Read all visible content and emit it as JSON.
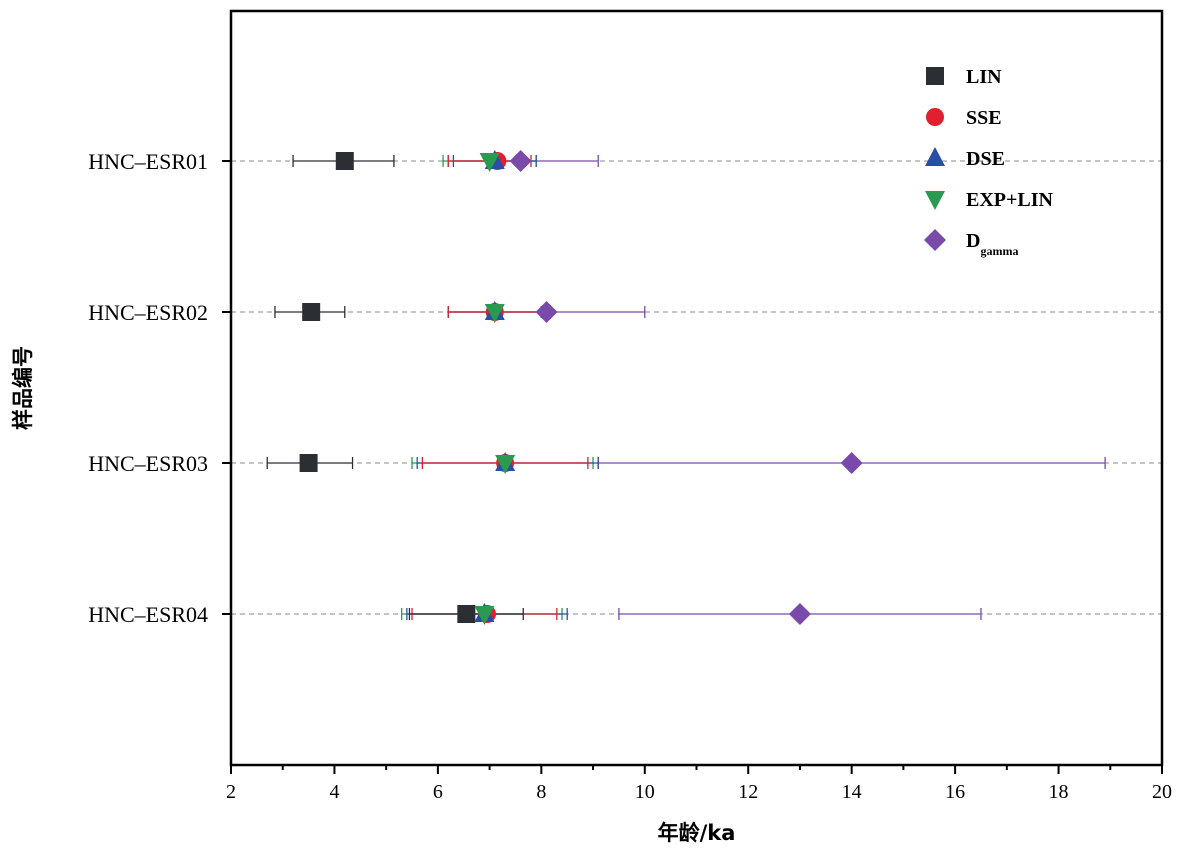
{
  "chart_data": {
    "type": "scatter",
    "xlabel": "年龄/ka",
    "ylabel": "样品编号",
    "xlim": [
      2,
      20
    ],
    "x_ticks": [
      "2",
      "4",
      "6",
      "8",
      "10",
      "12",
      "14",
      "16",
      "18",
      "20"
    ],
    "categories": [
      "HNC–ESR01",
      "HNC–ESR02",
      "HNC–ESR03",
      "HNC–ESR04"
    ],
    "legend_position": "top-right",
    "grid": "dashed horizontal line at each sample",
    "series": [
      {
        "name": "LIN",
        "subscript": "",
        "marker": "square",
        "color": "#2b2f33",
        "points": [
          {
            "x": 4.2,
            "low": 3.2,
            "high": 5.15
          },
          {
            "x": 3.55,
            "low": 2.85,
            "high": 4.2
          },
          {
            "x": 3.5,
            "low": 2.7,
            "high": 4.35
          },
          {
            "x": 6.55,
            "low": 5.45,
            "high": 7.65
          }
        ]
      },
      {
        "name": "SSE",
        "subscript": "",
        "marker": "circle",
        "color": "#e0202e",
        "points": [
          {
            "x": 7.15,
            "low": 6.2,
            "high": 7.8
          },
          {
            "x": 7.1,
            "low": 6.2,
            "high": 8.0
          },
          {
            "x": 7.3,
            "low": 5.7,
            "high": 8.9
          },
          {
            "x": 6.95,
            "low": 5.5,
            "high": 8.3
          }
        ]
      },
      {
        "name": "DSE",
        "subscript": "",
        "marker": "triangle-up",
        "color": "#2a4ea6",
        "points": [
          {
            "x": 7.1,
            "low": 6.3,
            "high": 7.9
          },
          {
            "x": 7.1,
            "low": 6.2,
            "high": 8.0
          },
          {
            "x": 7.3,
            "low": 5.6,
            "high": 9.1
          },
          {
            "x": 6.9,
            "low": 5.4,
            "high": 8.5
          }
        ]
      },
      {
        "name": "EXP+LIN",
        "subscript": "",
        "marker": "triangle-down",
        "color": "#2a9a50",
        "points": [
          {
            "x": 7.0,
            "low": 6.1,
            "high": 7.9
          },
          {
            "x": 7.1,
            "low": 6.2,
            "high": 8.0
          },
          {
            "x": 7.3,
            "low": 5.5,
            "high": 9.0
          },
          {
            "x": 6.9,
            "low": 5.3,
            "high": 8.4
          }
        ]
      },
      {
        "name": "D",
        "subscript": "gamma",
        "marker": "diamond",
        "color": "#7a4aaa",
        "points": [
          {
            "x": 7.6,
            "low": 6.2,
            "high": 9.1
          },
          {
            "x": 8.1,
            "low": 6.2,
            "high": 10.0
          },
          {
            "x": 14.0,
            "low": 9.1,
            "high": 18.9
          },
          {
            "x": 13.0,
            "low": 9.5,
            "high": 16.5
          }
        ]
      }
    ]
  }
}
